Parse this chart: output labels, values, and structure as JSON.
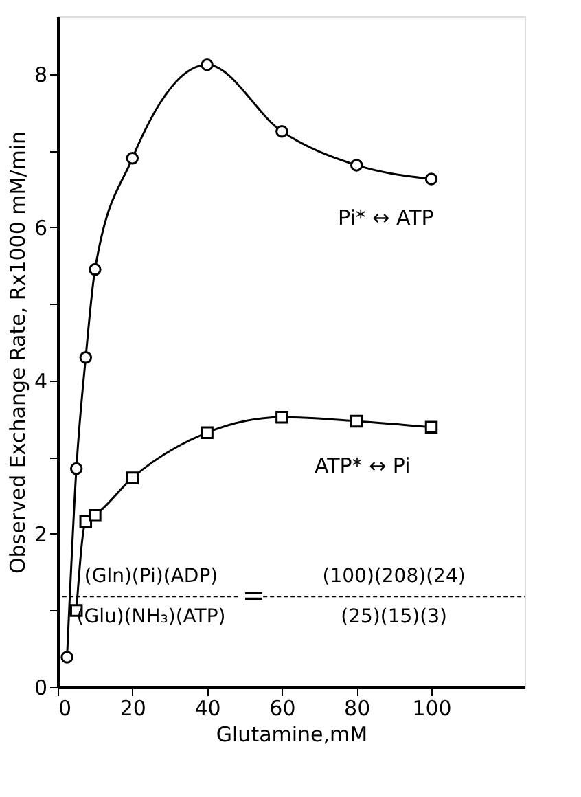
{
  "chart_data": {
    "type": "line",
    "xlabel": "Glutamine,mM",
    "ylabel": "Observed Exchange Rate, Rx1000 mM/min",
    "xlim": [
      0,
      125
    ],
    "xticks": [
      0,
      20,
      40,
      60,
      80,
      100
    ],
    "ylim": [
      0,
      8.75
    ],
    "yticks": [
      0,
      {
        "value": 1,
        "label": null
      },
      2,
      {
        "value": 3,
        "label": null
      },
      4,
      {
        "value": 5,
        "label": null
      },
      6,
      {
        "value": 7,
        "label": null
      },
      8
    ],
    "series": [
      {
        "name": "Pi* ↔ ATP",
        "color": "#000000",
        "marker": "circle",
        "x": [
          2.5,
          5,
          7.5,
          10,
          20,
          40,
          60,
          80,
          100
        ],
        "values": [
          0.39,
          2.85,
          4.3,
          5.45,
          6.9,
          8.12,
          7.25,
          6.81,
          6.63
        ]
      },
      {
        "name": "ATP* ↔ Pi",
        "color": "#000000",
        "marker": "square",
        "x": [
          5,
          7.5,
          10,
          20,
          40,
          60,
          80,
          100
        ],
        "values": [
          1.0,
          2.16,
          2.24,
          2.73,
          3.32,
          3.52,
          3.47,
          3.39
        ]
      }
    ],
    "annotations": [
      "(Gln)(Pi)(ADP)",
      "(Glu)(NH₃)(ATP)",
      "=",
      "(100)(208)(24)",
      "(25)(15)(3)"
    ],
    "grid": false
  }
}
